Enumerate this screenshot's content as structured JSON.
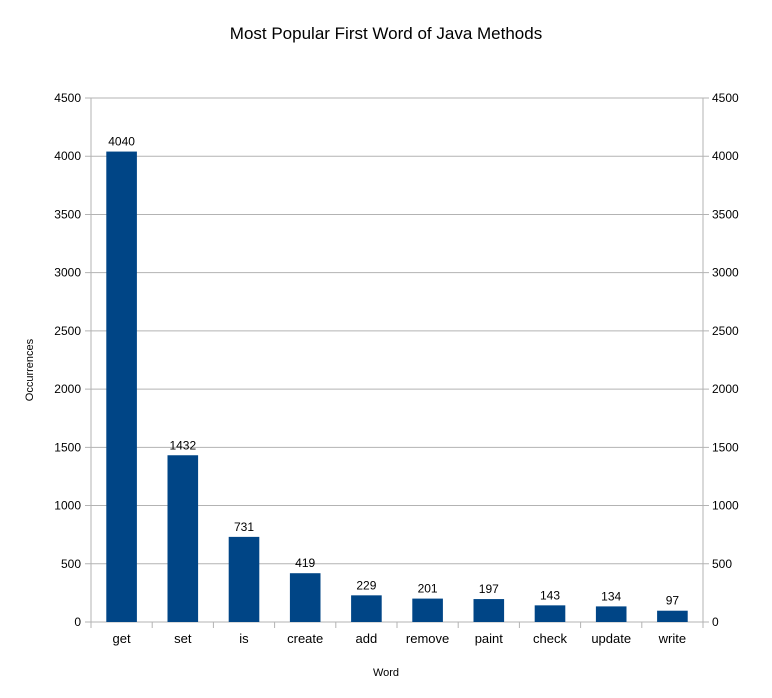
{
  "chart_data": {
    "type": "bar",
    "title": "Most Popular First Word of Java Methods",
    "xlabel": "Word",
    "ylabel": "Occurrences",
    "categories": [
      "get",
      "set",
      "is",
      "create",
      "add",
      "remove",
      "paint",
      "check",
      "update",
      "write"
    ],
    "values": [
      4040,
      1432,
      731,
      419,
      229,
      201,
      197,
      143,
      134,
      97
    ],
    "data_labels": [
      "4040",
      "1432",
      "731",
      "419",
      "229",
      "201",
      "197",
      "143",
      "134",
      "97"
    ],
    "ylim": [
      0,
      4500
    ],
    "yticks": [
      "0",
      "500",
      "1000",
      "1500",
      "2000",
      "2500",
      "3000",
      "3500",
      "4000",
      "4500"
    ],
    "secondary_y_axis": true,
    "grid": true,
    "colors": {
      "bar": "#004586",
      "grid": "#b3b3b3",
      "axis": "#b3b3b3"
    }
  }
}
